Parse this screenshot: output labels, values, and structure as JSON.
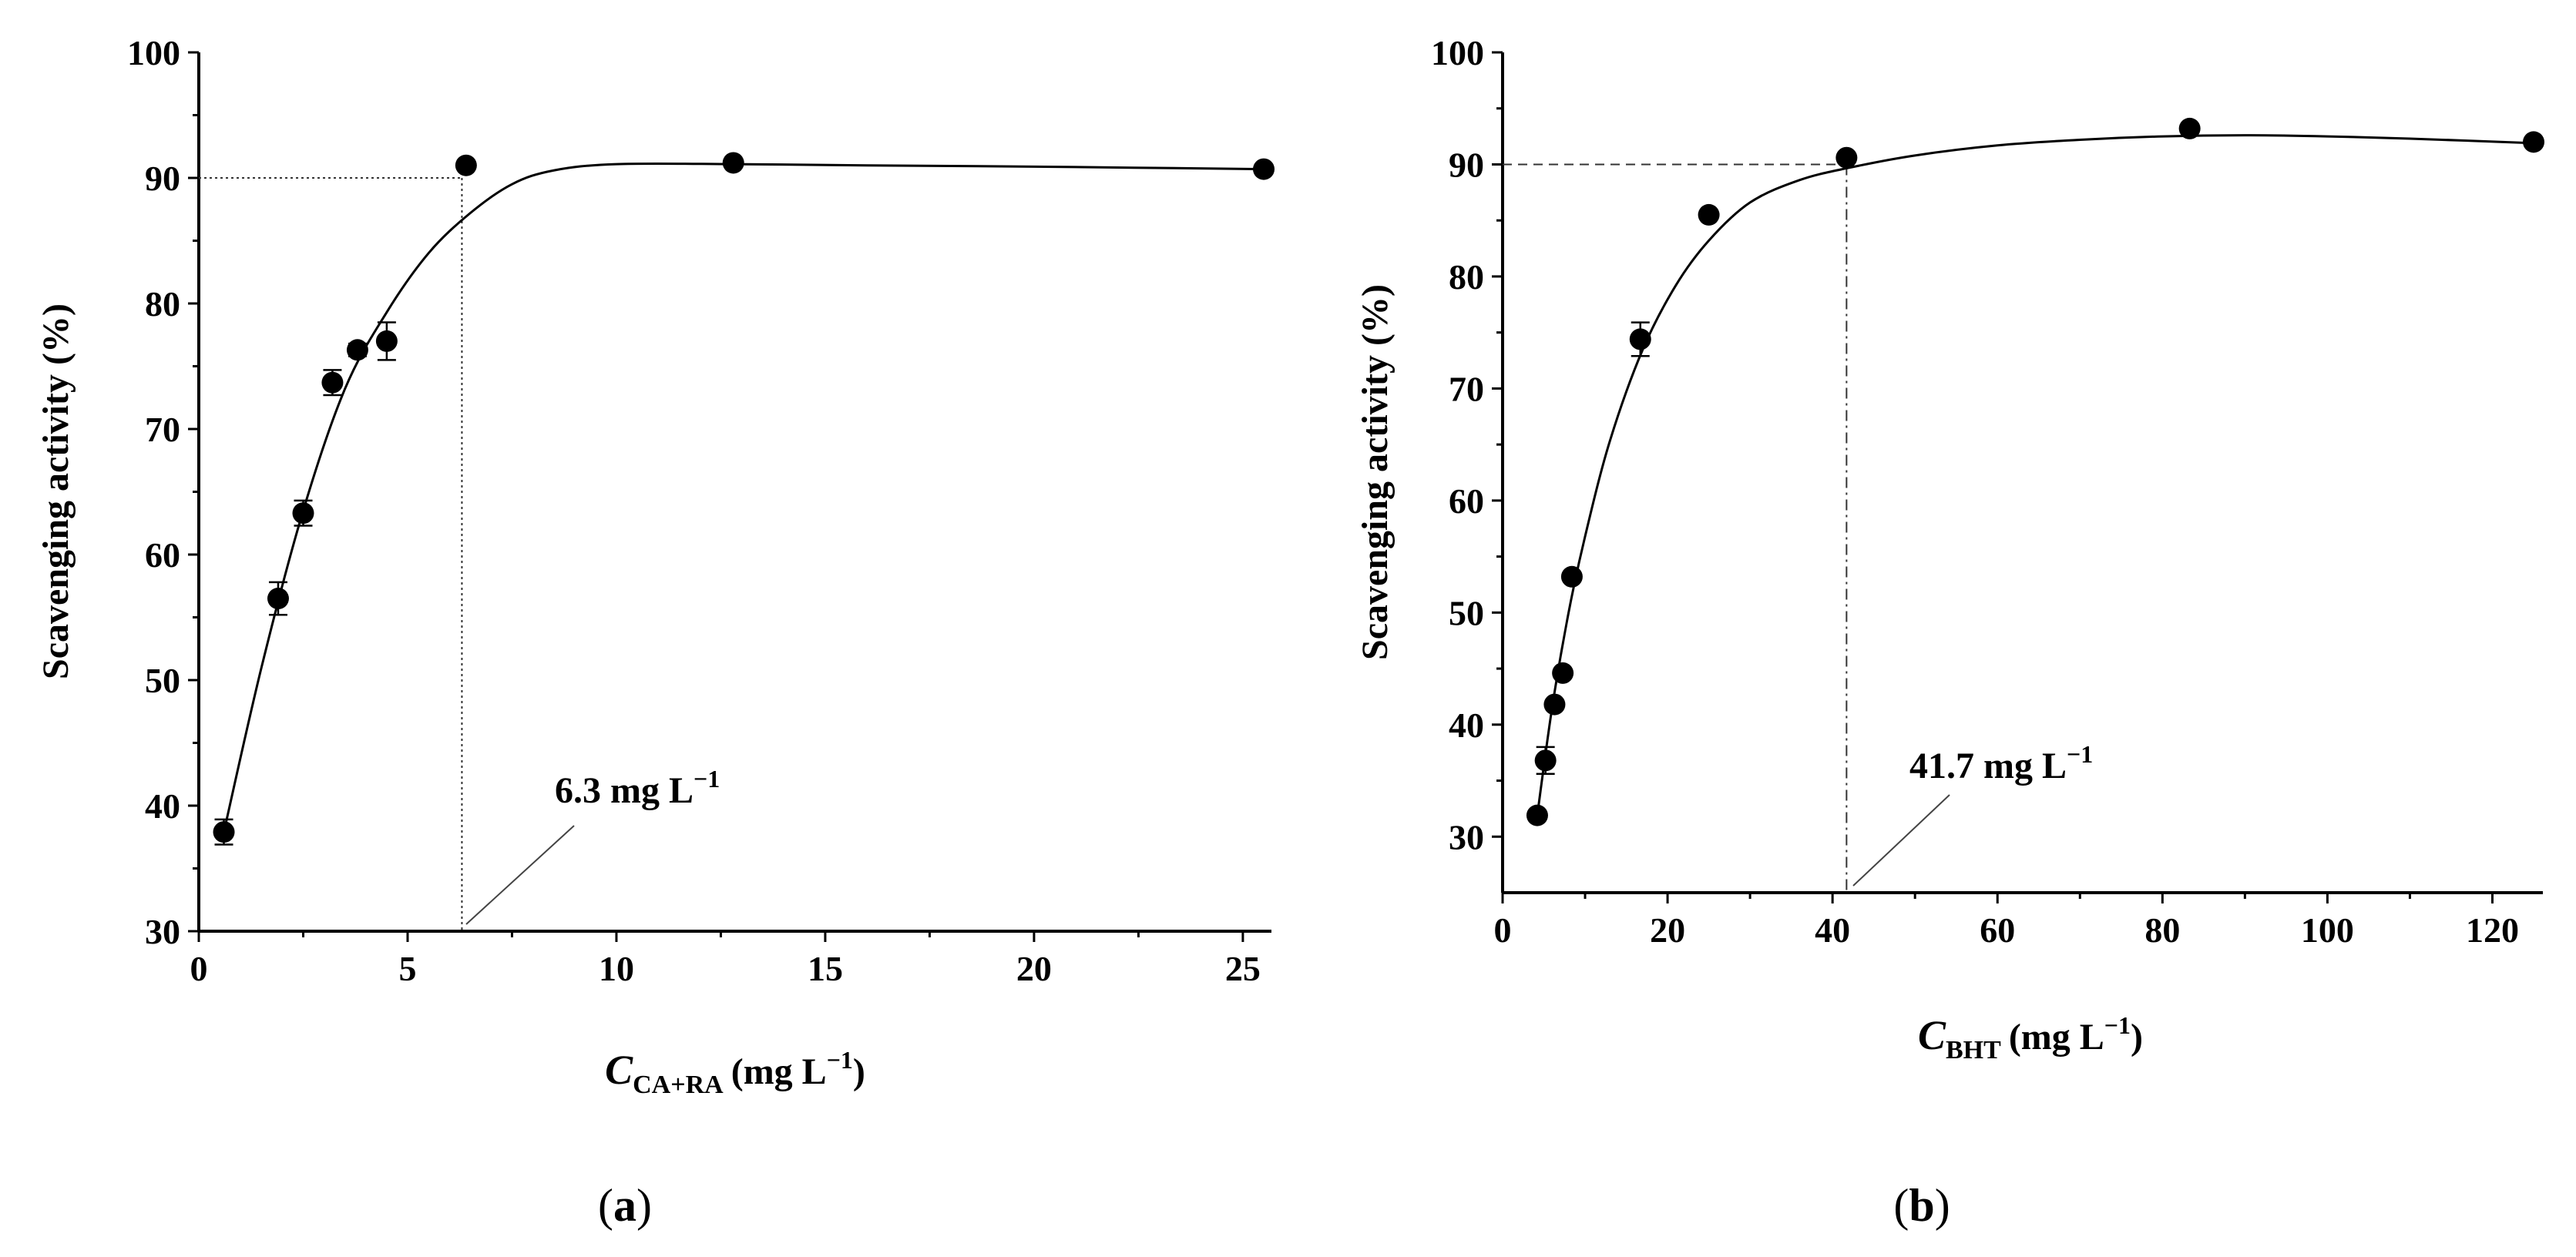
{
  "chart_data": [
    {
      "type": "scatter",
      "panel_label": "a",
      "xlabel": {
        "main": "C",
        "sub": "CA+RA",
        "unit": "(mg L",
        "sup": "−1",
        "close": ")"
      },
      "ylabel": "Scavenging activity (%)",
      "xlim": [
        0,
        25.5
      ],
      "ylim": [
        30,
        100
      ],
      "xticks": [
        "0",
        "5",
        "10",
        "15",
        "20",
        "25"
      ],
      "yticks": [
        "30",
        "40",
        "50",
        "60",
        "70",
        "80",
        "90",
        "100"
      ],
      "grid": false,
      "series": [
        {
          "x": [
            0.6,
            1.9,
            2.5,
            3.2,
            3.8,
            4.5,
            6.4,
            12.8,
            25.5
          ],
          "y": [
            37.9,
            56.5,
            63.3,
            73.7,
            76.3,
            77.0,
            91.0,
            91.2,
            90.7
          ],
          "err": [
            1.0,
            1.3,
            1.0,
            1.0,
            0.5,
            1.5,
            0.3,
            0.3,
            0.3
          ]
        }
      ],
      "fit_curve": {
        "x": [
          0.6,
          1.5,
          2.5,
          3.5,
          4.5,
          5.5,
          6.5,
          7.5,
          8.5,
          10,
          12.8,
          16,
          20,
          25.5
        ],
        "y": [
          37.9,
          51.0,
          63.5,
          73.2,
          79.3,
          84.0,
          87.2,
          89.5,
          90.6,
          91.1,
          91.1,
          91.0,
          90.9,
          90.7
        ]
      },
      "reference": {
        "x": 6.3,
        "y": 90
      },
      "annotation": {
        "text": "6.3 mg L",
        "sup": "−1"
      }
    },
    {
      "type": "scatter",
      "panel_label": "b",
      "xlabel": {
        "main": "C",
        "sub": "BHT",
        "unit": "(mg L",
        "sup": "−1",
        "close": ")"
      },
      "ylabel": "Scavenging activity (%)",
      "xlim": [
        0,
        125
      ],
      "ylim": [
        25,
        100
      ],
      "xticks": [
        "0",
        "20",
        "40",
        "60",
        "80",
        "100",
        "120"
      ],
      "yticks": [
        "30",
        "40",
        "50",
        "60",
        "70",
        "80",
        "90",
        "100"
      ],
      "grid": false,
      "series": [
        {
          "x": [
            4.2,
            5.2,
            6.3,
            7.3,
            8.4,
            16.7,
            25.0,
            41.7,
            83.3,
            125
          ],
          "y": [
            31.9,
            36.8,
            41.8,
            44.6,
            53.2,
            74.4,
            85.5,
            90.6,
            93.2,
            92.0
          ],
          "err": [
            0.3,
            1.2,
            0.3,
            0.3,
            0.3,
            1.5,
            0.3,
            0.3,
            0.3,
            0.3
          ]
        }
      ],
      "fit_curve": {
        "x": [
          4.2,
          6,
          8,
          10,
          13,
          17,
          21,
          25,
          30,
          36,
          42,
          50,
          60,
          70,
          80,
          90,
          100,
          110,
          125
        ],
        "y": [
          31.9,
          41.5,
          50.0,
          56.8,
          65.3,
          73.5,
          79.2,
          83.2,
          86.6,
          88.6,
          89.7,
          90.8,
          91.7,
          92.2,
          92.5,
          92.6,
          92.5,
          92.3,
          91.9
        ]
      },
      "reference": {
        "x": 41.7,
        "y": 90
      },
      "annotation": {
        "text": "41.7 mg L",
        "sup": "−1"
      }
    }
  ]
}
